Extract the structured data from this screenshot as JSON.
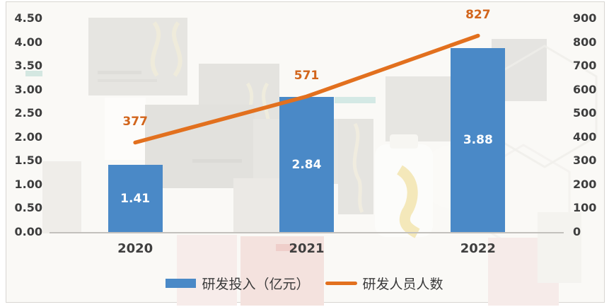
{
  "chart_data": {
    "type": "combo-bar-line",
    "categories": [
      "2020",
      "2021",
      "2022"
    ],
    "series": [
      {
        "name": "研发投入（亿元）",
        "type": "bar",
        "axis": "left",
        "values": [
          1.41,
          2.84,
          3.88
        ],
        "data_labels": [
          "1.41",
          "2.84",
          "3.88"
        ],
        "color": "#4A89C7",
        "label_color": "#FFFFFF"
      },
      {
        "name": "研发人员人数",
        "type": "line",
        "axis": "right",
        "values": [
          377,
          571,
          827
        ],
        "data_labels": [
          "377",
          "571",
          "827"
        ],
        "color": "#E2701E",
        "label_color": "#D2651C"
      }
    ],
    "left_axis": {
      "min": 0,
      "max": 4.5,
      "step": 0.5,
      "decimals": 2,
      "tick_labels": [
        "0.00",
        "0.50",
        "1.00",
        "1.50",
        "2.00",
        "2.50",
        "3.00",
        "3.50",
        "4.00",
        "4.50"
      ]
    },
    "right_axis": {
      "min": 0,
      "max": 900,
      "step": 100,
      "tick_labels": [
        "0",
        "100",
        "200",
        "300",
        "400",
        "500",
        "600",
        "700",
        "800",
        "900"
      ]
    },
    "gridlines": false,
    "legend_position": "bottom-center",
    "background": "faint watermark photo of pharmaceutical product boxes and bottles"
  },
  "legend": {
    "bar_label": "研发投入（亿元）",
    "line_label": "研发人员人数"
  },
  "colors": {
    "bar": "#4A89C7",
    "line": "#E2701E",
    "line_label_text": "#D2651C",
    "tick_text": "#3E3E3E",
    "axis_line": "#C3C1BD",
    "panel_background": "#FAF9F6"
  }
}
